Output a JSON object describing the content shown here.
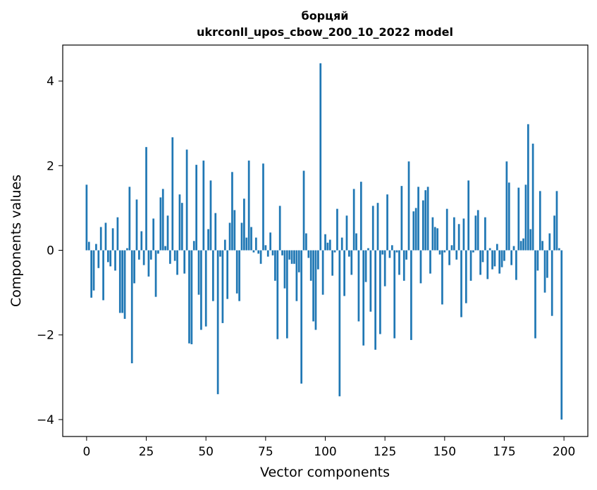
{
  "chart_data": {
    "type": "bar",
    "title": "борцяй",
    "subtitle": "ukrconll_upos_cbow_200_10_2022 model",
    "xlabel": "Vector components",
    "ylabel": "Components values",
    "xlim": [
      -10,
      210
    ],
    "ylim": [
      -4.4,
      4.85
    ],
    "xticks": [
      0,
      25,
      50,
      75,
      100,
      125,
      150,
      175,
      200
    ],
    "xtick_labels": [
      "0",
      "25",
      "50",
      "75",
      "100",
      "125",
      "150",
      "175",
      "200"
    ],
    "yticks": [
      -4,
      -2,
      0,
      2,
      4
    ],
    "ytick_labels": [
      "−4",
      "−2",
      "0",
      "2",
      "4"
    ],
    "grid": false,
    "bar_color": "#1f77b4",
    "values": [
      1.55,
      0.2,
      -1.12,
      -0.95,
      0.15,
      -0.42,
      0.55,
      -1.18,
      0.65,
      -0.28,
      -0.38,
      0.52,
      -0.48,
      0.78,
      -1.48,
      -1.48,
      -1.62,
      0.05,
      1.5,
      -2.67,
      -0.78,
      1.2,
      -0.22,
      0.45,
      -0.35,
      2.44,
      -0.62,
      -0.22,
      0.75,
      -1.1,
      -0.08,
      1.25,
      1.45,
      0.1,
      0.82,
      -0.32,
      2.67,
      -0.25,
      -0.58,
      1.32,
      1.12,
      -0.55,
      2.38,
      -2.2,
      -2.22,
      0.22,
      2.02,
      -1.05,
      -1.88,
      2.12,
      -1.8,
      0.5,
      1.65,
      -1.2,
      0.88,
      -3.4,
      -0.15,
      -1.72,
      0.25,
      -1.15,
      0.65,
      1.85,
      0.95,
      -1.02,
      -1.2,
      0.65,
      1.22,
      0.3,
      2.12,
      0.55,
      -0.05,
      0.3,
      -0.08,
      -0.32,
      2.05,
      0.12,
      -0.15,
      0.42,
      -0.12,
      -0.72,
      -2.1,
      1.05,
      -0.12,
      -0.9,
      -2.08,
      -0.22,
      -0.32,
      -0.32,
      -1.2,
      -0.52,
      -3.15,
      1.88,
      0.4,
      -0.18,
      -0.72,
      -1.68,
      -1.88,
      -0.45,
      4.42,
      -1.05,
      0.38,
      0.18,
      0.25,
      -0.6,
      -0.05,
      0.98,
      -3.45,
      0.3,
      -1.08,
      0.82,
      -0.15,
      -0.58,
      1.45,
      0.4,
      -1.68,
      1.62,
      -2.25,
      -0.75,
      0.05,
      -1.45,
      1.05,
      -2.35,
      1.12,
      -1.98,
      -0.1,
      -0.85,
      1.32,
      -0.18,
      0.12,
      -2.08,
      -0.05,
      -0.58,
      1.52,
      -0.72,
      -0.22,
      2.1,
      -2.12,
      0.92,
      1.0,
      1.5,
      -0.78,
      1.18,
      1.42,
      1.5,
      -0.55,
      0.78,
      0.55,
      0.52,
      -0.1,
      -1.28,
      -0.05,
      0.98,
      -0.35,
      0.12,
      0.78,
      -0.22,
      0.62,
      -1.58,
      0.75,
      -1.25,
      1.65,
      -0.72,
      -0.05,
      0.82,
      0.95,
      -0.58,
      -0.28,
      0.78,
      -0.68,
      0.05,
      -0.45,
      -0.38,
      0.15,
      -0.55,
      -0.4,
      -0.25,
      2.1,
      1.6,
      -0.35,
      0.1,
      -0.7,
      1.48,
      0.22,
      0.28,
      1.55,
      2.98,
      0.5,
      2.52,
      -2.08,
      -0.48,
      1.4,
      0.22,
      -1.0,
      -0.65,
      0.4,
      -1.55,
      0.82,
      1.4,
      0.05,
      -4.0
    ]
  }
}
